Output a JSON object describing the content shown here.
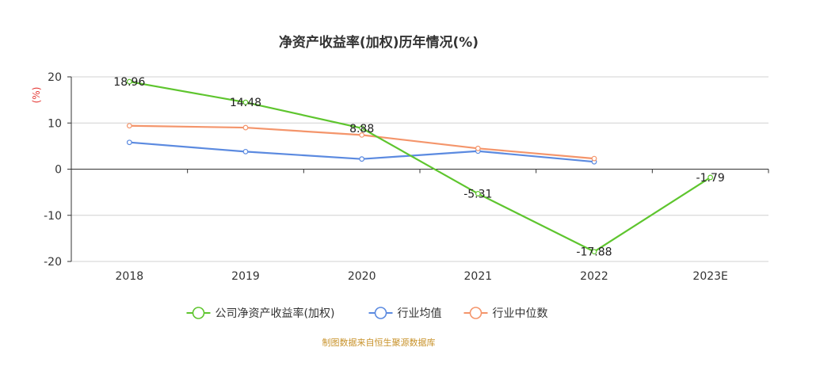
{
  "chart_data": {
    "type": "line",
    "title": "净资产收益率(加权)历年情况(%)",
    "ylabel": "(%)",
    "xlabel": "",
    "categories": [
      "2018",
      "2019",
      "2020",
      "2021",
      "2022",
      "2023E"
    ],
    "ylim": [
      -20,
      20
    ],
    "yticks": [
      20,
      10,
      0,
      -10,
      -20
    ],
    "grid": true,
    "legend_position": "bottom-center",
    "series": [
      {
        "name": "公司净资产收益率(加权)",
        "color": "#5ec52e",
        "values": [
          18.96,
          14.48,
          8.88,
          -5.31,
          -17.88,
          -1.79
        ],
        "labels": [
          "18.96",
          "14.48",
          "8.88",
          "-5.31",
          "-17.88",
          "-1.79"
        ]
      },
      {
        "name": "行业均值",
        "color": "#5b8ae0",
        "values": [
          5.8,
          3.8,
          2.2,
          3.9,
          1.6,
          null
        ]
      },
      {
        "name": "行业中位数",
        "color": "#f4956b",
        "values": [
          9.4,
          9.0,
          7.4,
          4.5,
          2.3,
          null
        ]
      }
    ]
  },
  "source_text": "制图数据来自恒生聚源数据库"
}
